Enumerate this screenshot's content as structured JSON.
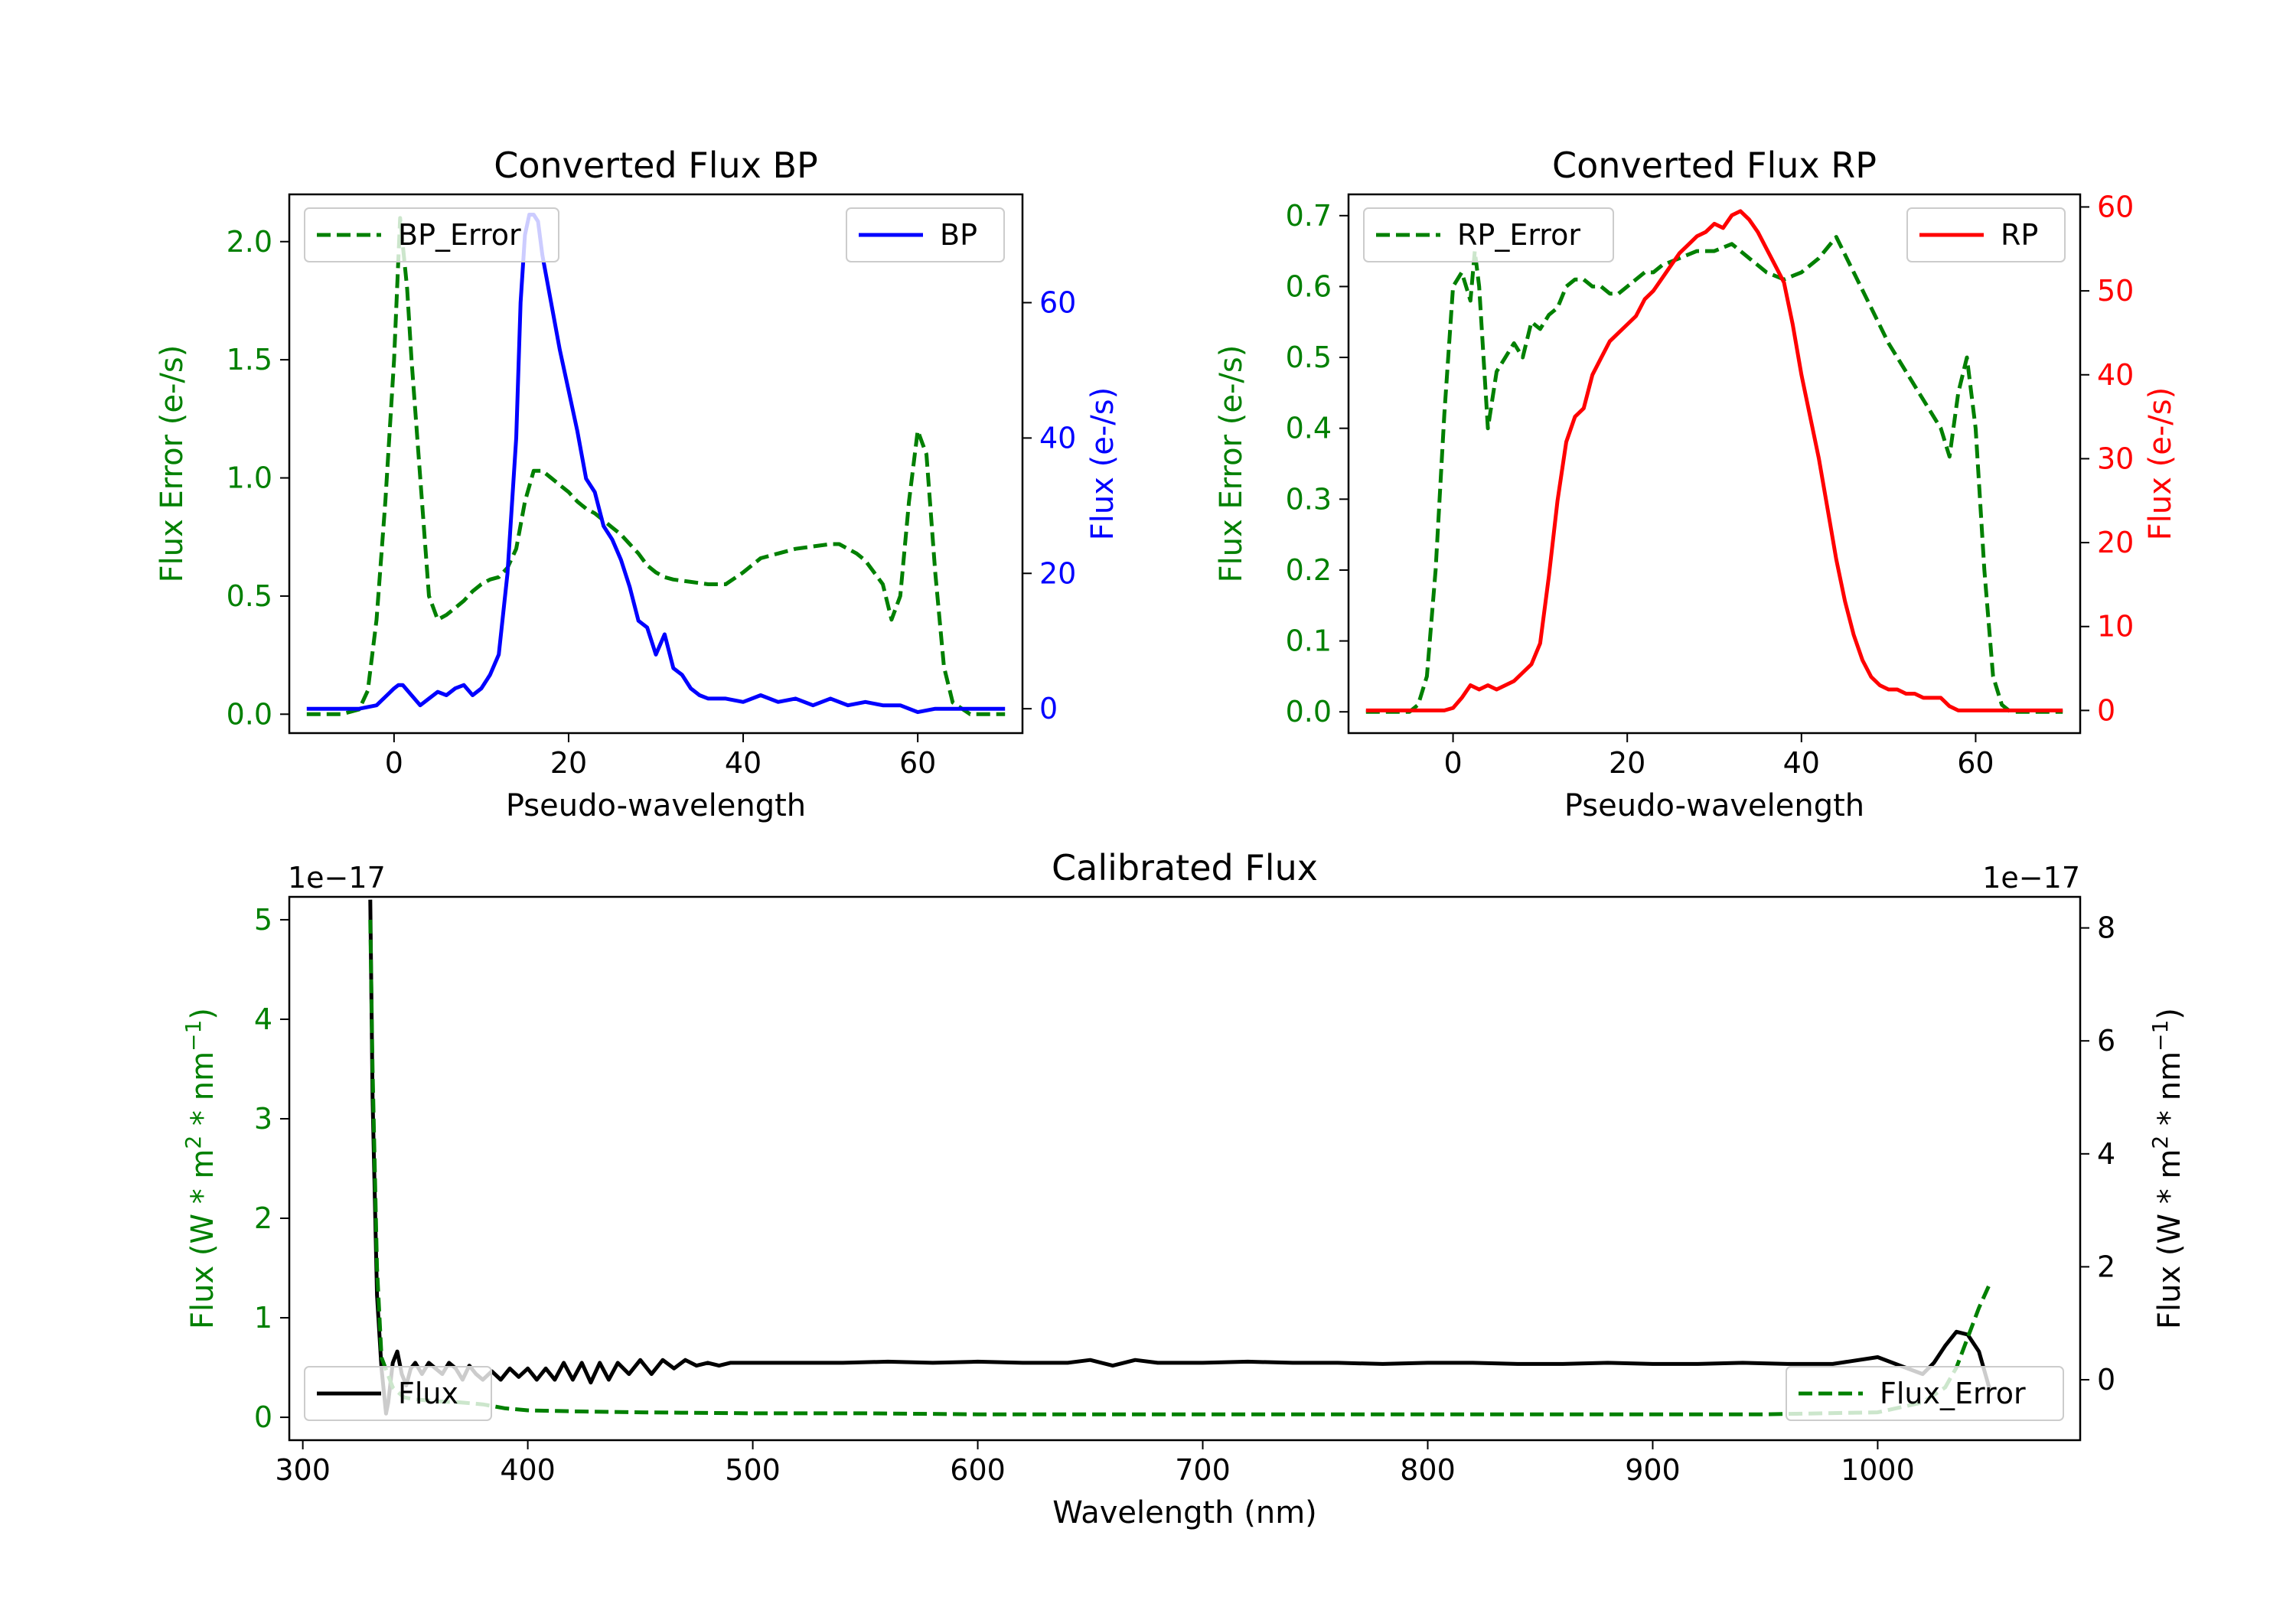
{
  "chart_data": [
    {
      "id": "bp",
      "type": "line",
      "title": "Converted Flux BP",
      "xlabel": "Pseudo-wavelength",
      "xlim": [
        -12,
        72
      ],
      "xticks": [
        0,
        20,
        40,
        60
      ],
      "left_axis": {
        "label": "Flux Error (e-/s)",
        "color": "#008000",
        "ylim": [
          -0.08,
          2.2
        ],
        "ticks": [
          "0.0",
          "0.5",
          "1.0",
          "1.5",
          "2.0"
        ],
        "tick_values": [
          0,
          0.5,
          1.0,
          1.5,
          2.0
        ]
      },
      "right_axis": {
        "label": "Flux (e-/s)",
        "color": "#0000ff",
        "ylim": [
          -3.6,
          76
        ],
        "ticks": [
          "0",
          "20",
          "40",
          "60"
        ],
        "tick_values": [
          0,
          20,
          40,
          60
        ]
      },
      "series": [
        {
          "name": "BP_Error",
          "axis": "left",
          "color": "#008000",
          "dash": true,
          "x": [
            -10,
            -6,
            -4,
            -3,
            -2,
            -1,
            0,
            0.7,
            1.5,
            2,
            3,
            4,
            5,
            6,
            7,
            8,
            9,
            10,
            11,
            12,
            13,
            14,
            15,
            16,
            17,
            18,
            19,
            20,
            21,
            22,
            23,
            24,
            25,
            26,
            27,
            28,
            29,
            30,
            31,
            32,
            34,
            36,
            38,
            40,
            42,
            44,
            46,
            48,
            50,
            51,
            52,
            53,
            54,
            55,
            56,
            57,
            58,
            59,
            60,
            61,
            62,
            63,
            64,
            66,
            70
          ],
          "y": [
            0,
            0,
            0.02,
            0.1,
            0.4,
            0.9,
            1.5,
            2.1,
            1.8,
            1.5,
            1.0,
            0.5,
            0.4,
            0.42,
            0.45,
            0.48,
            0.52,
            0.55,
            0.57,
            0.58,
            0.62,
            0.7,
            0.9,
            1.03,
            1.03,
            1.0,
            0.97,
            0.94,
            0.9,
            0.87,
            0.85,
            0.82,
            0.79,
            0.76,
            0.72,
            0.68,
            0.63,
            0.6,
            0.58,
            0.57,
            0.56,
            0.55,
            0.55,
            0.6,
            0.66,
            0.68,
            0.7,
            0.71,
            0.72,
            0.72,
            0.7,
            0.68,
            0.65,
            0.6,
            0.55,
            0.4,
            0.5,
            0.9,
            1.2,
            1.1,
            0.6,
            0.2,
            0.05,
            0,
            0
          ]
        },
        {
          "name": "BP",
          "axis": "right",
          "color": "#0000ff",
          "dash": false,
          "x": [
            -10,
            -4,
            -2,
            0,
            0.5,
            1,
            2,
            3,
            4,
            5,
            6,
            7,
            8,
            9,
            10,
            11,
            12,
            13,
            14,
            14.5,
            15,
            15.5,
            16,
            16.5,
            17,
            18,
            19,
            20,
            21,
            22,
            23,
            24,
            25,
            26,
            27,
            28,
            29,
            30,
            31,
            32,
            33,
            34,
            35,
            36,
            38,
            40,
            42,
            44,
            46,
            48,
            50,
            52,
            54,
            56,
            58,
            60,
            62,
            64,
            66,
            70
          ],
          "y": [
            0,
            0,
            0.5,
            3,
            3.5,
            3.5,
            2,
            0.5,
            1.5,
            2.5,
            2,
            3,
            3.5,
            2,
            3,
            5,
            8,
            20,
            40,
            60,
            70,
            73,
            73,
            72,
            67,
            60,
            53,
            47,
            41,
            34,
            32,
            27,
            25,
            22,
            18,
            13,
            12,
            8,
            11,
            6,
            5,
            3,
            2,
            1.5,
            1.5,
            1,
            2,
            1,
            1.5,
            0.5,
            1.5,
            0.5,
            1,
            0.5,
            0.5,
            -0.5,
            0,
            0,
            0,
            0
          ]
        }
      ],
      "legend": [
        "BP_Error",
        "BP"
      ]
    },
    {
      "id": "rp",
      "type": "line",
      "title": "Converted Flux RP",
      "xlabel": "Pseudo-wavelength",
      "xlim": [
        -12,
        72
      ],
      "xticks": [
        0,
        20,
        40,
        60
      ],
      "left_axis": {
        "label": "Flux Error (e-/s)",
        "color": "#008000",
        "ylim": [
          -0.03,
          0.73
        ],
        "ticks": [
          "0.0",
          "0.1",
          "0.2",
          "0.3",
          "0.4",
          "0.5",
          "0.6",
          "0.7"
        ],
        "tick_values": [
          0,
          0.1,
          0.2,
          0.3,
          0.4,
          0.5,
          0.6,
          0.7
        ]
      },
      "right_axis": {
        "label": "Flux (e-/s)",
        "color": "#ff0000",
        "ylim": [
          -2.7,
          61.5
        ],
        "ticks": [
          "0",
          "10",
          "20",
          "30",
          "40",
          "50",
          "60"
        ],
        "tick_values": [
          0,
          10,
          20,
          30,
          40,
          50,
          60
        ]
      },
      "series": [
        {
          "name": "RP_Error",
          "axis": "left",
          "color": "#008000",
          "dash": true,
          "x": [
            -10,
            -5,
            -4,
            -3,
            -2,
            -1,
            0,
            1,
            2,
            2.5,
            3,
            4,
            5,
            6,
            7,
            8,
            9,
            10,
            11,
            12,
            13,
            14,
            15,
            16,
            17,
            18,
            19,
            20,
            21,
            22,
            23,
            24,
            26,
            28,
            30,
            32,
            34,
            36,
            38,
            40,
            42,
            44,
            46,
            48,
            50,
            52,
            54,
            56,
            57,
            58,
            59,
            60,
            61,
            62,
            63,
            64,
            66,
            70
          ],
          "y": [
            0,
            0,
            0.01,
            0.05,
            0.2,
            0.42,
            0.6,
            0.62,
            0.58,
            0.65,
            0.6,
            0.4,
            0.48,
            0.5,
            0.52,
            0.5,
            0.55,
            0.54,
            0.56,
            0.57,
            0.6,
            0.61,
            0.61,
            0.6,
            0.6,
            0.59,
            0.59,
            0.6,
            0.61,
            0.62,
            0.62,
            0.63,
            0.64,
            0.65,
            0.65,
            0.66,
            0.64,
            0.62,
            0.61,
            0.62,
            0.64,
            0.67,
            0.62,
            0.57,
            0.52,
            0.48,
            0.44,
            0.4,
            0.36,
            0.45,
            0.5,
            0.4,
            0.2,
            0.05,
            0.01,
            0,
            0,
            0
          ]
        },
        {
          "name": "RP",
          "axis": "right",
          "color": "#ff0000",
          "dash": false,
          "x": [
            -10,
            -3,
            -1,
            0,
            1,
            2,
            3,
            4,
            5,
            6,
            7,
            8,
            9,
            10,
            11,
            12,
            13,
            14,
            15,
            16,
            17,
            18,
            19,
            20,
            21,
            22,
            23,
            24,
            25,
            26,
            27,
            28,
            29,
            30,
            31,
            32,
            33,
            34,
            35,
            36,
            37,
            38,
            39,
            40,
            41,
            42,
            43,
            44,
            45,
            46,
            47,
            48,
            49,
            50,
            51,
            52,
            53,
            54,
            55,
            56,
            57,
            58,
            59,
            60,
            62,
            64,
            66,
            70
          ],
          "y": [
            0,
            0,
            0,
            0.3,
            1.5,
            3,
            2.5,
            3,
            2.5,
            3,
            3.5,
            4.5,
            5.5,
            8,
            16,
            25,
            32,
            35,
            36,
            40,
            42,
            44,
            45,
            46,
            47,
            49,
            50,
            51.5,
            53,
            54.5,
            55.5,
            56.5,
            57,
            58,
            57.5,
            59,
            59.5,
            58.5,
            57,
            55,
            53,
            51,
            46,
            40,
            35,
            30,
            24,
            18,
            13,
            9,
            6,
            4,
            3,
            2.5,
            2.5,
            2,
            2,
            1.5,
            1.5,
            1.5,
            0.5,
            0,
            0,
            0,
            0,
            0,
            0,
            0
          ]
        }
      ],
      "legend": [
        "RP_Error",
        "RP"
      ]
    },
    {
      "id": "cal",
      "type": "line",
      "title": "Calibrated Flux",
      "xlabel": "Wavelength (nm)",
      "xlim": [
        294,
        1090
      ],
      "xticks": [
        300,
        400,
        500,
        600,
        700,
        800,
        900,
        1000
      ],
      "left_axis": {
        "label": "Flux (W * m2 * nm-1)",
        "color": "#008000",
        "ylim": [
          -0.23,
          5.23
        ],
        "offset": "1e−17",
        "ticks": [
          "0",
          "1",
          "2",
          "3",
          "4",
          "5"
        ],
        "tick_values": [
          0,
          1,
          2,
          3,
          4,
          5
        ]
      },
      "right_axis": {
        "label": "Flux (W * m2 * nm-1)",
        "color": "#000000",
        "ylim": [
          -1.07,
          8.55
        ],
        "offset": "1e−17",
        "ticks": [
          "0",
          "2",
          "4",
          "6",
          "8"
        ],
        "tick_values": [
          0,
          2,
          4,
          6,
          8
        ]
      },
      "series": [
        {
          "name": "Flux",
          "axis": "right",
          "color": "#000000",
          "dash": false,
          "x": [
            330,
            331,
            333,
            335,
            337,
            338,
            340,
            342,
            344,
            346,
            348,
            350,
            353,
            356,
            359,
            362,
            365,
            368,
            371,
            374,
            377,
            380,
            384,
            388,
            392,
            396,
            400,
            404,
            408,
            412,
            416,
            420,
            424,
            428,
            432,
            436,
            440,
            445,
            450,
            455,
            460,
            465,
            470,
            475,
            480,
            485,
            490,
            500,
            520,
            540,
            560,
            580,
            600,
            620,
            640,
            650,
            660,
            670,
            680,
            700,
            720,
            740,
            760,
            780,
            800,
            820,
            840,
            860,
            880,
            900,
            920,
            940,
            960,
            980,
            1000,
            1010,
            1020,
            1025,
            1030,
            1035,
            1040,
            1045,
            1050
          ],
          "y": [
            8.5,
            5,
            1.5,
            0.2,
            -0.6,
            -0.4,
            0.3,
            0.5,
            0.1,
            -0.1,
            0.2,
            0.3,
            0.1,
            0.3,
            0.2,
            0.1,
            0.3,
            0.2,
            0.0,
            0.25,
            0.1,
            0.0,
            0.15,
            0.0,
            0.2,
            0.05,
            0.2,
            0.0,
            0.2,
            0.0,
            0.3,
            0.0,
            0.3,
            -0.05,
            0.3,
            0.0,
            0.3,
            0.1,
            0.35,
            0.1,
            0.35,
            0.2,
            0.35,
            0.25,
            0.3,
            0.25,
            0.3,
            0.3,
            0.3,
            0.3,
            0.32,
            0.3,
            0.32,
            0.3,
            0.3,
            0.35,
            0.25,
            0.35,
            0.3,
            0.3,
            0.32,
            0.3,
            0.3,
            0.28,
            0.3,
            0.3,
            0.28,
            0.28,
            0.3,
            0.28,
            0.28,
            0.3,
            0.28,
            0.28,
            0.4,
            0.25,
            0.1,
            0.3,
            0.6,
            0.85,
            0.8,
            0.5,
            -0.2
          ]
        },
        {
          "name": "Flux_Error",
          "axis": "left",
          "color": "#008000",
          "dash": true,
          "x": [
            330,
            331,
            333,
            335,
            340,
            345,
            350,
            360,
            370,
            380,
            390,
            400,
            420,
            450,
            500,
            550,
            600,
            650,
            700,
            750,
            800,
            850,
            900,
            950,
            1000,
            1020,
            1030,
            1035,
            1040,
            1045,
            1050
          ],
          "y": [
            5,
            3.5,
            1.5,
            0.6,
            0.3,
            0.2,
            0.18,
            0.16,
            0.15,
            0.13,
            0.09,
            0.07,
            0.06,
            0.05,
            0.04,
            0.04,
            0.03,
            0.03,
            0.03,
            0.03,
            0.03,
            0.03,
            0.03,
            0.03,
            0.05,
            0.15,
            0.3,
            0.5,
            0.8,
            1.1,
            1.35
          ]
        }
      ],
      "legend": [
        "Flux",
        "Flux_Error"
      ]
    }
  ]
}
